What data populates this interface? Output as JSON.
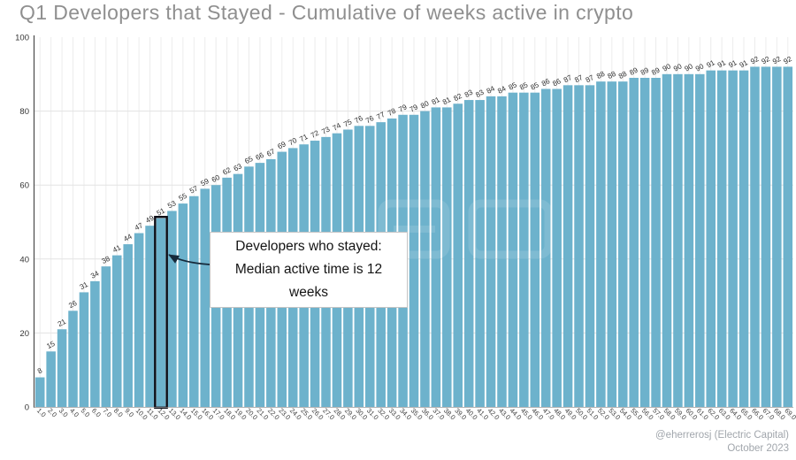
{
  "chart_data": {
    "type": "bar",
    "title": "Q1 Developers that Stayed - Cumulative of weeks active in crypto",
    "xlabel": "",
    "ylabel": "",
    "ylim": [
      0,
      100
    ],
    "yticks": [
      0,
      20,
      40,
      60,
      80,
      100
    ],
    "grid": true,
    "legend": false,
    "categories": [
      "1.0",
      "2.0",
      "3.0",
      "4.0",
      "5.0",
      "6.0",
      "7.0",
      "8.0",
      "9.0",
      "10.0",
      "11.0",
      "12.0",
      "13.0",
      "14.0",
      "15.0",
      "16.0",
      "17.0",
      "18.0",
      "19.0",
      "20.0",
      "21.0",
      "22.0",
      "23.0",
      "24.0",
      "25.0",
      "26.0",
      "27.0",
      "28.0",
      "29.0",
      "30.0",
      "31.0",
      "32.0",
      "33.0",
      "34.0",
      "35.0",
      "36.0",
      "37.0",
      "38.0",
      "39.0",
      "40.0",
      "41.0",
      "42.0",
      "43.0",
      "44.0",
      "45.0",
      "46.0",
      "47.0",
      "48.0",
      "49.0",
      "50.0",
      "51.0",
      "52.0",
      "53.0",
      "54.0",
      "55.0",
      "56.0",
      "57.0",
      "58.0",
      "59.0",
      "60.0",
      "61.0",
      "62.0",
      "63.0",
      "64.0",
      "65.0",
      "66.0",
      "67.0",
      "68.0",
      "69.0"
    ],
    "values": [
      8,
      15,
      21,
      26,
      31,
      34,
      38,
      41,
      44,
      47,
      49,
      51,
      53,
      55,
      57,
      59,
      60,
      62,
      63,
      65,
      66,
      67,
      69,
      70,
      71,
      72,
      73,
      74,
      75,
      76,
      76,
      77,
      78,
      79,
      79,
      80,
      81,
      81,
      82,
      83,
      83,
      84,
      84,
      85,
      85,
      85,
      86,
      86,
      87,
      87,
      87,
      88,
      88,
      88,
      89,
      89,
      89,
      90,
      90,
      90,
      90,
      91,
      91,
      91,
      91,
      92,
      92,
      92,
      92
    ],
    "highlight": {
      "index": 11,
      "category": "12.0",
      "value": 51
    }
  },
  "annotation": {
    "lines": [
      "Developers who stayed:",
      "Median active time is 12",
      "weeks"
    ]
  },
  "footer": {
    "credit": "@eherrerosj (Electric Capital)",
    "date": "October 2023"
  },
  "colors": {
    "bar": "#6db2cc",
    "highlight_stroke": "#0b0b14",
    "arrow": "#16293a",
    "grid_v": "#ececec",
    "grid_h": "#e3e3e3",
    "axis_spine": "#4a4a4a",
    "value_label": "#2b2b2b",
    "tick_label": "#3d3d3d",
    "title": "#8f8f8f",
    "footer": "#a1a6ac",
    "watermark": "#ffffff"
  }
}
